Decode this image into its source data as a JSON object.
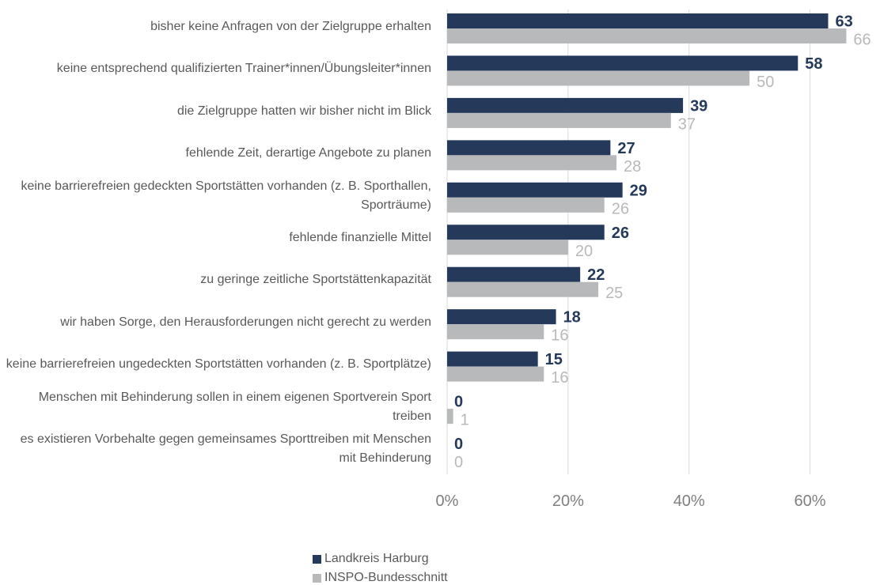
{
  "chart_data": {
    "type": "bar",
    "orientation": "horizontal",
    "categories": [
      "bisher keine Anfragen von der Zielgruppe erhalten",
      "keine entsprechend qualifizierten Trainer*innen/Übungsleiter*innen",
      "die Zielgruppe hatten wir bisher nicht im Blick",
      "fehlende Zeit, derartige Angebote zu planen",
      "keine barrierefreien gedeckten Sportstätten vorhanden (z. B. Sporthallen, Sporträume)",
      "fehlende finanzielle Mittel",
      "zu geringe zeitliche Sportstättenkapazität",
      "wir haben Sorge, den Herausforderungen nicht gerecht zu werden",
      "keine barrierefreien ungedeckten Sportstätten vorhanden (z. B. Sportplätze)",
      "Menschen mit Behinderung sollen in einem eigenen Sportverein Sport treiben",
      "es existieren Vorbehalte gegen gemeinsames Sporttreiben mit Menschen mit Behinderung"
    ],
    "series": [
      {
        "name": "Landkreis Harburg",
        "color": "#253a5a",
        "values": [
          63,
          58,
          39,
          27,
          29,
          26,
          22,
          18,
          15,
          0,
          0
        ]
      },
      {
        "name": "INSPO-Bundesschnitt",
        "color": "#b8b9bb",
        "values": [
          66,
          50,
          37,
          28,
          26,
          20,
          25,
          16,
          16,
          1,
          0
        ]
      }
    ],
    "xlim": [
      0,
      70
    ],
    "xticks": [
      {
        "value": 0,
        "label": "0%"
      },
      {
        "value": 20,
        "label": "20%"
      },
      {
        "value": 40,
        "label": "40%"
      },
      {
        "value": 60,
        "label": "60%"
      }
    ],
    "grid": true,
    "legend": "bottom"
  }
}
